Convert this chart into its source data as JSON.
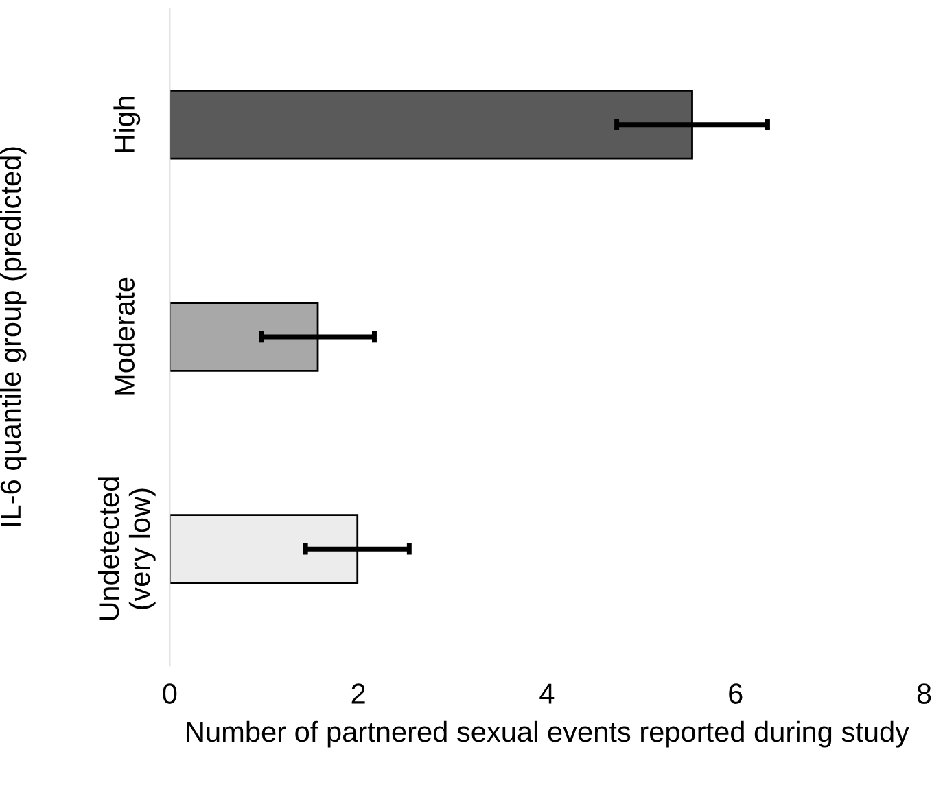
{
  "chart_data": {
    "type": "bar",
    "orientation": "horizontal",
    "xlabel": "Number of partnered sexual events reported during study",
    "ylabel": "IL-6 quantile group (predicted)",
    "categories": [
      "High",
      "Moderate",
      "Undetected\n(very low)"
    ],
    "values": [
      5.54,
      1.57,
      1.99
    ],
    "errors": [
      0.8,
      0.6,
      0.55
    ],
    "colors": [
      "#5a5a5a",
      "#a8a8a8",
      "#ececec"
    ],
    "xlim": [
      0,
      8
    ],
    "xticks": [
      0,
      2,
      4,
      6,
      8
    ],
    "grid": false
  }
}
